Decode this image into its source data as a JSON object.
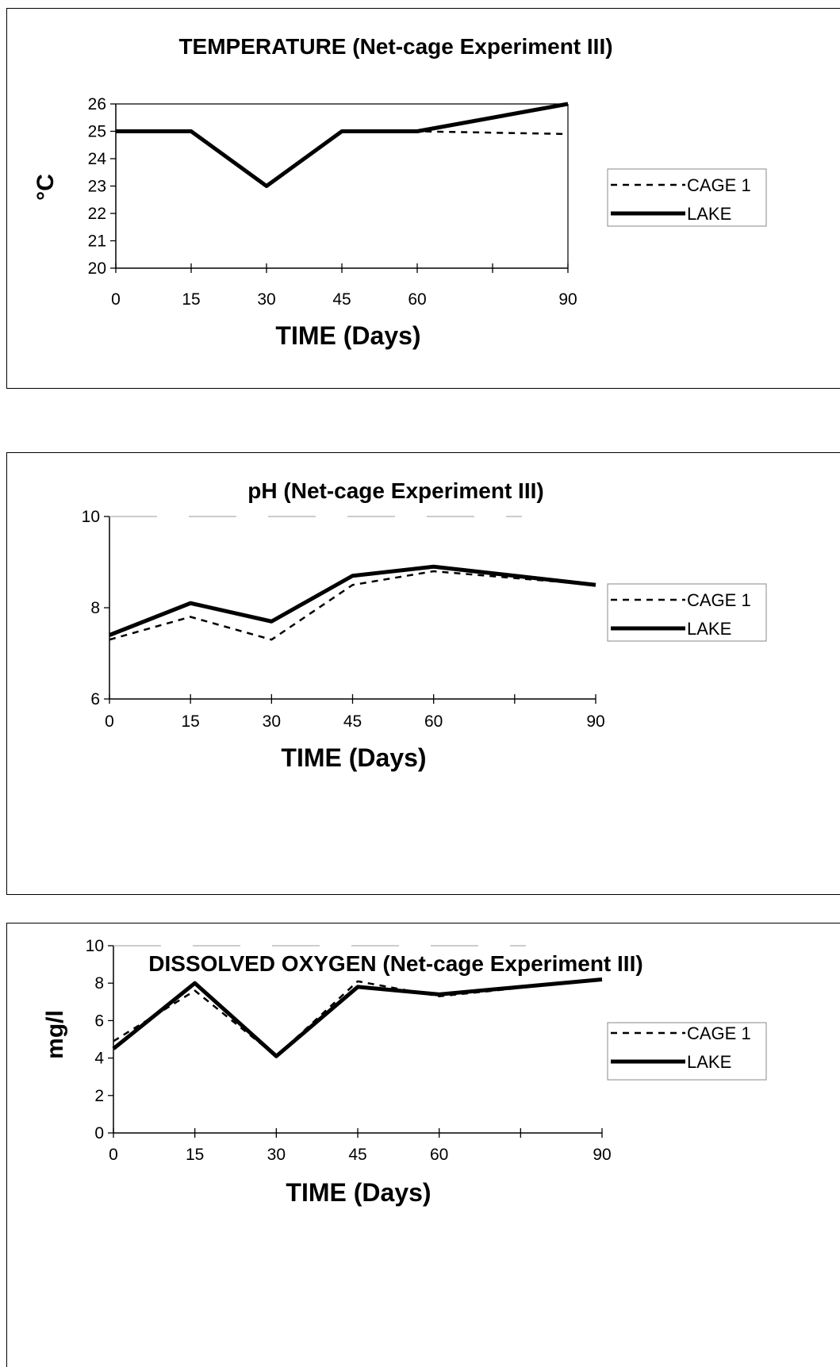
{
  "chart_data": [
    {
      "type": "line",
      "title": "TEMPERATURE (Net-cage Experiment III)",
      "xlabel": "TIME (Days)",
      "ylabel": "°C",
      "x": [
        0,
        15,
        30,
        45,
        60,
        90
      ],
      "x_ticks": [
        "0",
        "15",
        "30",
        "45",
        "60",
        "90"
      ],
      "ylim": [
        20,
        26
      ],
      "y_ticks": [
        "20",
        "21",
        "22",
        "23",
        "24",
        "25",
        "26"
      ],
      "series": [
        {
          "name": "CAGE 1",
          "values": [
            25,
            25,
            23,
            25,
            25,
            24.9
          ],
          "style": "dashed"
        },
        {
          "name": "LAKE",
          "values": [
            25,
            25,
            23,
            25,
            25,
            26
          ],
          "style": "solid"
        }
      ],
      "legend": "right"
    },
    {
      "type": "line",
      "title": "pH (Net-cage Experiment III)",
      "xlabel": "TIME (Days)",
      "ylabel": "",
      "x": [
        0,
        15,
        30,
        45,
        60,
        90
      ],
      "x_ticks": [
        "0",
        "15",
        "30",
        "45",
        "60",
        "90"
      ],
      "ylim": [
        6,
        10
      ],
      "y_ticks": [
        "6",
        "8",
        "10"
      ],
      "series": [
        {
          "name": "CAGE 1",
          "values": [
            7.3,
            7.8,
            7.3,
            8.5,
            8.8,
            8.5
          ],
          "style": "dashed"
        },
        {
          "name": "LAKE",
          "values": [
            7.4,
            8.1,
            7.7,
            8.7,
            8.9,
            8.5
          ],
          "style": "solid"
        }
      ],
      "legend": "right"
    },
    {
      "type": "line",
      "title": "DISSOLVED OXYGEN (Net-cage Experiment III)",
      "xlabel": "TIME (Days)",
      "ylabel": "mg/l",
      "x": [
        0,
        15,
        30,
        45,
        60,
        90
      ],
      "x_ticks": [
        "0",
        "15",
        "30",
        "45",
        "60",
        "90"
      ],
      "ylim": [
        0,
        10
      ],
      "y_ticks": [
        "0",
        "2",
        "4",
        "6",
        "8",
        "10"
      ],
      "series": [
        {
          "name": "CAGE 1",
          "values": [
            4.9,
            7.6,
            4.1,
            8.1,
            7.3,
            8.2
          ],
          "style": "dashed"
        },
        {
          "name": "LAKE",
          "values": [
            4.5,
            8.0,
            4.1,
            7.8,
            7.4,
            8.2
          ],
          "style": "solid"
        }
      ],
      "legend": "right"
    }
  ]
}
